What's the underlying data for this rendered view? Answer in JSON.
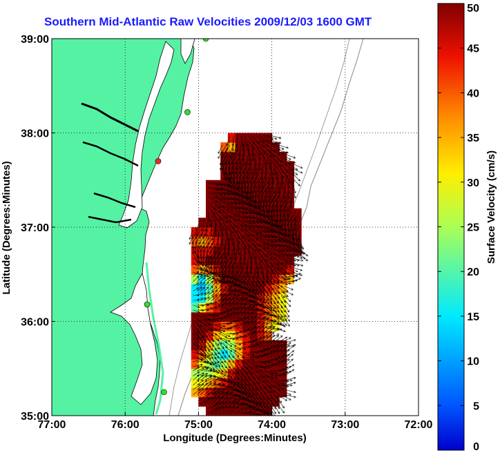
{
  "chart_data": {
    "type": "heatmap",
    "title": "Southern Mid-Atlantic Raw Velocities 2009/12/03 1600 GMT",
    "xlabel": "Longitude (Degrees:Minutes)",
    "ylabel": "Latitude (Degrees:Minutes)",
    "xlim": [
      -77,
      -72
    ],
    "ylim": [
      35,
      39
    ],
    "x_ticks": [
      -77,
      -76,
      -75,
      -74,
      -73,
      -72
    ],
    "x_tick_labels": [
      "77:00",
      "76:00",
      "75:00",
      "74:00",
      "73:00",
      "72:00"
    ],
    "y_ticks": [
      35,
      36,
      37,
      38,
      39
    ],
    "y_tick_labels": [
      "35:00",
      "36:00",
      "37:00",
      "38:00",
      "39:00"
    ],
    "grid": "dotted",
    "colorbar": {
      "label": "Surface Velocity (cm/s)",
      "min": 0,
      "max": 50,
      "ticks": [
        0,
        5,
        10,
        15,
        20,
        25,
        30,
        35,
        40,
        45,
        50
      ],
      "tick_labels": [
        "0",
        "5",
        "10",
        "15",
        "20",
        "25",
        "30",
        "35",
        "40",
        "45",
        "50"
      ],
      "colormap": "jet"
    },
    "speed_field": {
      "description": "estimated surface current speed (cm/s) on 0.1 deg lon x 0.1 deg lat cells",
      "lon_start": -75.1,
      "lat_start": 35.0,
      "dlon": 0.1,
      "dlat": 0.1,
      "rows": [
        [
          0,
          0,
          50,
          50,
          50,
          50,
          50,
          50,
          50,
          50,
          50,
          0,
          0,
          0,
          0
        ],
        [
          0,
          50,
          50,
          50,
          50,
          50,
          50,
          50,
          50,
          50,
          50,
          50,
          0,
          0,
          0
        ],
        [
          35,
          40,
          45,
          50,
          50,
          50,
          50,
          50,
          50,
          50,
          50,
          50,
          50,
          0,
          0
        ],
        [
          30,
          30,
          35,
          40,
          45,
          50,
          50,
          50,
          50,
          50,
          50,
          50,
          50,
          0,
          0
        ],
        [
          25,
          25,
          25,
          30,
          35,
          45,
          50,
          50,
          50,
          50,
          50,
          50,
          50,
          0,
          0
        ],
        [
          40,
          30,
          25,
          20,
          25,
          35,
          45,
          50,
          50,
          50,
          50,
          50,
          50,
          0,
          0
        ],
        [
          45,
          40,
          30,
          20,
          15,
          20,
          35,
          45,
          50,
          50,
          50,
          50,
          50,
          0,
          0
        ],
        [
          50,
          45,
          35,
          25,
          20,
          25,
          35,
          45,
          50,
          50,
          50,
          50,
          50,
          0,
          0
        ],
        [
          50,
          50,
          45,
          35,
          30,
          30,
          40,
          45,
          50,
          45,
          40,
          0,
          0,
          0,
          0
        ],
        [
          50,
          50,
          50,
          45,
          40,
          40,
          45,
          50,
          50,
          45,
          35,
          30,
          0,
          0,
          0
        ],
        [
          50,
          50,
          50,
          50,
          50,
          50,
          50,
          50,
          50,
          45,
          40,
          35,
          30,
          0,
          0
        ],
        [
          20,
          30,
          40,
          45,
          50,
          50,
          50,
          50,
          50,
          45,
          40,
          35,
          30,
          0,
          0
        ],
        [
          15,
          15,
          25,
          40,
          50,
          50,
          50,
          50,
          50,
          45,
          40,
          35,
          30,
          0,
          0
        ],
        [
          15,
          12,
          20,
          35,
          45,
          50,
          50,
          50,
          50,
          50,
          45,
          40,
          35,
          0,
          0
        ],
        [
          25,
          15,
          25,
          40,
          50,
          50,
          50,
          50,
          50,
          50,
          50,
          45,
          40,
          35,
          0
        ],
        [
          40,
          35,
          40,
          45,
          50,
          50,
          50,
          50,
          50,
          50,
          50,
          50,
          50,
          45,
          0
        ],
        [
          45,
          45,
          50,
          50,
          50,
          50,
          50,
          50,
          50,
          50,
          50,
          50,
          50,
          50,
          0
        ],
        [
          45,
          45,
          45,
          50,
          50,
          50,
          50,
          50,
          50,
          50,
          50,
          50,
          50,
          50,
          50
        ],
        [
          40,
          35,
          40,
          45,
          50,
          50,
          50,
          50,
          50,
          50,
          50,
          50,
          50,
          50,
          50
        ],
        [
          45,
          45,
          45,
          50,
          50,
          50,
          50,
          50,
          50,
          50,
          50,
          50,
          50,
          50,
          50
        ],
        [
          0,
          50,
          50,
          50,
          50,
          50,
          50,
          50,
          50,
          50,
          50,
          50,
          50,
          50,
          50
        ],
        [
          0,
          0,
          50,
          50,
          50,
          50,
          50,
          50,
          50,
          50,
          50,
          50,
          50,
          50,
          50
        ],
        [
          0,
          0,
          50,
          50,
          50,
          50,
          50,
          50,
          50,
          50,
          50,
          50,
          50,
          50,
          0
        ],
        [
          0,
          0,
          50,
          50,
          50,
          50,
          50,
          50,
          50,
          50,
          50,
          50,
          50,
          50,
          0
        ],
        [
          0,
          0,
          50,
          50,
          50,
          50,
          50,
          50,
          50,
          50,
          50,
          50,
          50,
          50,
          0
        ],
        [
          0,
          0,
          0,
          0,
          50,
          50,
          50,
          50,
          50,
          50,
          50,
          50,
          50,
          50,
          0
        ],
        [
          0,
          0,
          0,
          0,
          50,
          50,
          50,
          50,
          50,
          50,
          50,
          50,
          50,
          50,
          0
        ],
        [
          0,
          0,
          0,
          0,
          50,
          50,
          50,
          50,
          50,
          50,
          50,
          50,
          50,
          0,
          0
        ],
        [
          0,
          0,
          0,
          0,
          40,
          35,
          50,
          50,
          50,
          50,
          50,
          50,
          0,
          0,
          0
        ],
        [
          0,
          0,
          0,
          0,
          0,
          45,
          50,
          50,
          50,
          50,
          50,
          0,
          0,
          0,
          0
        ]
      ]
    },
    "stations": [
      {
        "lon": -74.9,
        "lat": 39.0,
        "color": "#33dd33"
      },
      {
        "lon": -75.15,
        "lat": 38.22,
        "color": "#33dd33"
      },
      {
        "lon": -75.55,
        "lat": 37.7,
        "color": "#e03020"
      },
      {
        "lon": -75.7,
        "lat": 36.18,
        "color": "#33dd33"
      },
      {
        "lon": -75.47,
        "lat": 35.25,
        "color": "#33dd33"
      }
    ],
    "colors": {
      "land": "#55f2a4",
      "water": "#ffffff",
      "title": "#1a1aff",
      "vectors": "#000000",
      "coastline": "#000000",
      "bathymetry": "#999999"
    }
  }
}
